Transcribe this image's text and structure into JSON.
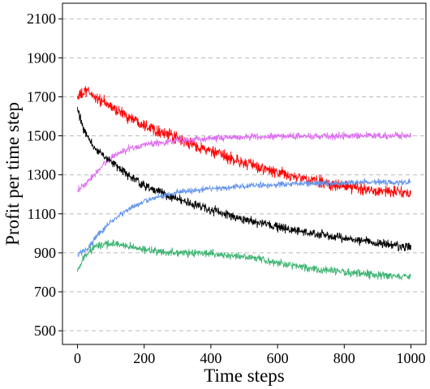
{
  "chart_data": {
    "type": "line",
    "title": "",
    "xlabel": "Time steps",
    "ylabel": "Profit per time step",
    "xlim": [
      -45,
      1045
    ],
    "ylim": [
      430,
      2180
    ],
    "x_ticks": [
      0,
      200,
      400,
      600,
      800,
      1000
    ],
    "y_ticks": [
      500,
      700,
      900,
      1100,
      1300,
      1500,
      1700,
      1900,
      2100
    ],
    "grid": "horizontal dashed",
    "legend": "none",
    "series": [
      {
        "color": "#ff0000",
        "noise": 28,
        "points": [
          [
            0,
            1700
          ],
          [
            30,
            1730
          ],
          [
            60,
            1690
          ],
          [
            100,
            1650
          ],
          [
            150,
            1600
          ],
          [
            200,
            1560
          ],
          [
            250,
            1520
          ],
          [
            300,
            1485
          ],
          [
            400,
            1420
          ],
          [
            500,
            1360
          ],
          [
            600,
            1310
          ],
          [
            700,
            1270
          ],
          [
            800,
            1240
          ],
          [
            900,
            1220
          ],
          [
            1000,
            1205
          ]
        ]
      },
      {
        "color": "#dd6ff0",
        "noise": 16,
        "points": [
          [
            0,
            1220
          ],
          [
            30,
            1260
          ],
          [
            60,
            1320
          ],
          [
            100,
            1390
          ],
          [
            150,
            1430
          ],
          [
            200,
            1455
          ],
          [
            300,
            1475
          ],
          [
            400,
            1488
          ],
          [
            500,
            1494
          ],
          [
            600,
            1497
          ],
          [
            700,
            1498
          ],
          [
            800,
            1500
          ],
          [
            900,
            1500
          ],
          [
            1000,
            1500
          ]
        ]
      },
      {
        "color": "#000000",
        "noise": 20,
        "points": [
          [
            0,
            1640
          ],
          [
            20,
            1520
          ],
          [
            50,
            1440
          ],
          [
            100,
            1370
          ],
          [
            150,
            1300
          ],
          [
            200,
            1245
          ],
          [
            300,
            1175
          ],
          [
            400,
            1120
          ],
          [
            500,
            1070
          ],
          [
            600,
            1030
          ],
          [
            700,
            1000
          ],
          [
            800,
            975
          ],
          [
            900,
            950
          ],
          [
            1000,
            925
          ]
        ]
      },
      {
        "color": "#6495ed",
        "noise": 14,
        "points": [
          [
            0,
            890
          ],
          [
            30,
            920
          ],
          [
            60,
            990
          ],
          [
            100,
            1060
          ],
          [
            150,
            1120
          ],
          [
            200,
            1165
          ],
          [
            300,
            1210
          ],
          [
            400,
            1230
          ],
          [
            500,
            1242
          ],
          [
            600,
            1250
          ],
          [
            700,
            1255
          ],
          [
            800,
            1260
          ],
          [
            900,
            1262
          ],
          [
            1000,
            1262
          ]
        ]
      },
      {
        "color": "#3cb371",
        "noise": 18,
        "points": [
          [
            0,
            800
          ],
          [
            20,
            880
          ],
          [
            50,
            930
          ],
          [
            100,
            950
          ],
          [
            150,
            935
          ],
          [
            200,
            915
          ],
          [
            300,
            900
          ],
          [
            400,
            895
          ],
          [
            500,
            880
          ],
          [
            600,
            850
          ],
          [
            700,
            820
          ],
          [
            800,
            800
          ],
          [
            900,
            785
          ],
          [
            1000,
            775
          ]
        ]
      }
    ]
  }
}
